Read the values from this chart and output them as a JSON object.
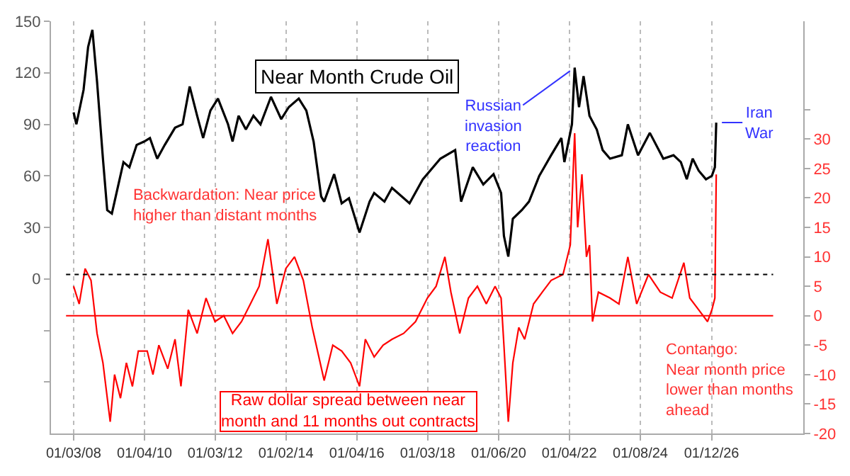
{
  "chart_data": {
    "type": "line",
    "title": "Near Month Crude Oil",
    "xlim": [
      "2007-05-15",
      "2028-08-15"
    ],
    "xticks": [
      {
        "value": "2008-01-03",
        "label": "01/03/08"
      },
      {
        "value": "2010-01-04",
        "label": "01/04/10"
      },
      {
        "value": "2012-01-03",
        "label": "01/03/12"
      },
      {
        "value": "2014-01-02",
        "label": "01/02/14"
      },
      {
        "value": "2016-01-04",
        "label": "01/04/16"
      },
      {
        "value": "2018-01-03",
        "label": "01/03/18"
      },
      {
        "value": "2020-01-06",
        "label": "01/06/20"
      },
      {
        "value": "2022-01-04",
        "label": "01/04/22"
      },
      {
        "value": "2024-01-08",
        "label": "01/08/24"
      },
      {
        "value": "2026-01-12",
        "label": "01/12/26"
      }
    ],
    "ylim": [
      -90,
      150
    ],
    "yticks": [
      {
        "value": -60,
        "label": null
      },
      {
        "value": -30,
        "label": null
      },
      0,
      30,
      60,
      90,
      120,
      150
    ],
    "y2lim": [
      -20,
      50
    ],
    "y2ticks": [
      -20,
      -15,
      -10,
      -5,
      0,
      5,
      10,
      15,
      20,
      25,
      30,
      {
        "value": 35,
        "label": null
      }
    ],
    "grid": "x",
    "series": [
      {
        "color": "#000000",
        "x": [
          "2008-01-03",
          "2008-02-01",
          "2008-04-15",
          "2008-06-01",
          "2008-07-15",
          "2008-09-01",
          "2008-11-01",
          "2008-12-15",
          "2009-02-01",
          "2009-03-01",
          "2009-06-01",
          "2009-08-01",
          "2009-10-15",
          "2010-01-01",
          "2010-03-01",
          "2010-05-15",
          "2010-08-01",
          "2010-11-15",
          "2011-02-01",
          "2011-04-15",
          "2011-07-01",
          "2011-09-01",
          "2011-11-15",
          "2012-02-01",
          "2012-05-15",
          "2012-07-01",
          "2012-09-01",
          "2012-11-15",
          "2013-02-01",
          "2013-04-15",
          "2013-08-01",
          "2013-11-15",
          "2014-02-01",
          "2014-05-15",
          "2014-08-01",
          "2014-10-15",
          "2015-01-01",
          "2015-02-01",
          "2015-05-15",
          "2015-08-01",
          "2015-10-15",
          "2016-02-01",
          "2016-05-15",
          "2016-07-01",
          "2016-10-15",
          "2017-01-01",
          "2017-07-01",
          "2017-11-15",
          "2018-05-15",
          "2018-10-15",
          "2018-12-15",
          "2019-04-15",
          "2019-08-01",
          "2019-11-15",
          "2020-02-01",
          "2020-03-01",
          "2020-04-15",
          "2020-06-01",
          "2020-09-01",
          "2020-11-15",
          "2021-03-01",
          "2021-07-01",
          "2021-10-15",
          "2021-11-15",
          "2022-02-01",
          "2022-03-01",
          "2022-04-15",
          "2022-06-01",
          "2022-08-01",
          "2022-10-15",
          "2022-12-15",
          "2023-03-01",
          "2023-07-01",
          "2023-09-01",
          "2023-12-15",
          "2024-04-15",
          "2024-09-01",
          "2024-12-15",
          "2025-03-01",
          "2025-05-01",
          "2025-07-01",
          "2025-09-01",
          "2025-11-15",
          "2026-01-15",
          "2026-02-15",
          "2026-03-01"
        ],
        "values": [
          97,
          90,
          110,
          135,
          145,
          115,
          70,
          40,
          38,
          45,
          68,
          65,
          78,
          80,
          82,
          70,
          78,
          88,
          90,
          112,
          95,
          82,
          98,
          105,
          90,
          80,
          95,
          87,
          95,
          90,
          106,
          93,
          100,
          105,
          98,
          80,
          48,
          45,
          61,
          44,
          47,
          27,
          45,
          50,
          45,
          53,
          44,
          58,
          70,
          75,
          45,
          65,
          55,
          61,
          50,
          25,
          13,
          35,
          40,
          45,
          60,
          72,
          82,
          68,
          90,
          123,
          100,
          118,
          95,
          87,
          75,
          70,
          72,
          90,
          72,
          85,
          70,
          72,
          68,
          58,
          70,
          63,
          58,
          60,
          65,
          91
        ]
      },
      {
        "color": "#ff0000",
        "axis": "y2",
        "x": [
          "2008-01-03",
          "2008-03-01",
          "2008-05-01",
          "2008-07-01",
          "2008-09-01",
          "2008-11-01",
          "2009-01-15",
          "2009-03-01",
          "2009-05-01",
          "2009-07-01",
          "2009-09-01",
          "2009-11-01",
          "2010-02-01",
          "2010-04-01",
          "2010-06-01",
          "2010-09-01",
          "2010-11-15",
          "2011-01-15",
          "2011-04-01",
          "2011-07-01",
          "2011-10-01",
          "2012-01-01",
          "2012-04-01",
          "2012-07-01",
          "2012-10-01",
          "2013-01-01",
          "2013-04-01",
          "2013-07-01",
          "2013-10-01",
          "2014-01-01",
          "2014-04-01",
          "2014-07-01",
          "2014-10-01",
          "2015-02-01",
          "2015-05-01",
          "2015-08-01",
          "2015-11-01",
          "2016-02-01",
          "2016-04-01",
          "2016-07-01",
          "2016-10-01",
          "2017-01-01",
          "2017-05-01",
          "2017-09-01",
          "2018-01-01",
          "2018-04-01",
          "2018-07-01",
          "2018-09-01",
          "2018-12-01",
          "2019-03-01",
          "2019-06-01",
          "2019-09-01",
          "2019-12-01",
          "2020-02-01",
          "2020-03-01",
          "2020-04-15",
          "2020-06-01",
          "2020-08-01",
          "2020-10-01",
          "2021-01-01",
          "2021-04-01",
          "2021-07-01",
          "2021-11-01",
          "2022-01-15",
          "2022-03-01",
          "2022-04-01",
          "2022-05-15",
          "2022-07-01",
          "2022-08-01",
          "2022-09-01",
          "2022-11-01",
          "2023-03-01",
          "2023-06-01",
          "2023-09-01",
          "2023-12-01",
          "2024-04-01",
          "2024-08-01",
          "2024-12-01",
          "2025-04-01",
          "2025-06-01",
          "2025-09-01",
          "2025-12-01",
          "2026-01-15",
          "2026-02-15",
          "2026-03-01"
        ],
        "values": [
          5,
          2,
          8,
          6,
          -3,
          -8,
          -18,
          -10,
          -14,
          -8,
          -12,
          -6,
          -6,
          -10,
          -5,
          -9,
          -4,
          -12,
          1,
          -3,
          3,
          -1,
          0,
          -3,
          -1,
          2,
          5,
          13,
          2,
          8,
          10,
          6,
          -2,
          -11,
          -5,
          -6,
          -8,
          -12,
          -4,
          -7,
          -5,
          -4,
          -3,
          -1,
          3,
          5,
          10,
          4,
          -3,
          3,
          5,
          2,
          5,
          3,
          -5,
          -18,
          -8,
          -2,
          -4,
          2,
          4,
          6,
          7,
          12,
          31,
          15,
          24,
          10,
          12,
          -1,
          4,
          3,
          2,
          10,
          2,
          7,
          4,
          3,
          9,
          3,
          1,
          -1,
          1,
          3,
          24
        ]
      }
    ],
    "ref_lines": [
      {
        "axis": "y2",
        "value": 0,
        "color": "#ff0000",
        "line_style": "solid"
      },
      {
        "axis": "y2",
        "value": 7,
        "color": "#000000",
        "line_style": "dotted"
      }
    ],
    "annotations": [
      {
        "text": "Russian\ninvasion\nreaction",
        "x": "2022-03-01",
        "y": 123
      },
      {
        "text": "Iran\nWar",
        "x": "2026-03-01",
        "y": 91
      },
      "Backwardation: Near price\nhigher than distant months",
      "Raw dollar spread between near\nmonth and 11 months out contracts",
      "Contango:\nNear month price\nlower than months\nahead"
    ]
  }
}
